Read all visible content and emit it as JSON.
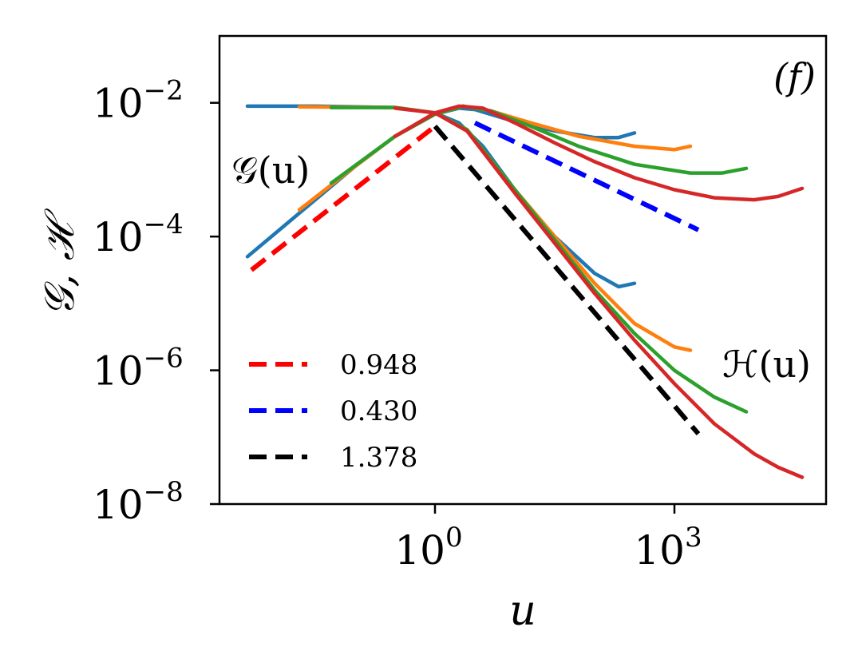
{
  "chart_data": {
    "type": "line",
    "panel_label": "(f)",
    "xlabel": "u",
    "ylabel": "𝒢, ℋ",
    "xscale": "log",
    "yscale": "log",
    "xlim_log10": [
      -2.7,
      4.9
    ],
    "ylim_log10": [
      -8.0,
      -1.0
    ],
    "x_ticks": [
      {
        "exp": 0,
        "base": "10",
        "sup": "0"
      },
      {
        "exp": 3,
        "base": "10",
        "sup": "3"
      }
    ],
    "y_ticks": [
      {
        "exp": -2,
        "base": "10",
        "sup": "−2"
      },
      {
        "exp": -4,
        "base": "10",
        "sup": "−4"
      },
      {
        "exp": -6,
        "base": "10",
        "sup": "−6"
      },
      {
        "exp": -8,
        "base": "10",
        "sup": "−8"
      }
    ],
    "annotations": [
      {
        "text": "𝒢(u)",
        "x_log10": -2.55,
        "y_log10": -3.2
      },
      {
        "text": "ℋ(u)",
        "x_log10": 3.6,
        "y_log10": -6.1
      }
    ],
    "legend_position": "lower-left",
    "legend": [
      {
        "label": "0.948",
        "color": "#ff0000"
      },
      {
        "label": "0.430",
        "color": "#0000ff"
      },
      {
        "label": "1.378",
        "color": "#000000"
      }
    ],
    "fit_lines": [
      {
        "name": "0.948",
        "color": "#ff0000",
        "points": [
          [
            -2.3,
            -4.5
          ],
          [
            0.0,
            -2.35
          ]
        ]
      },
      {
        "name": "0.430",
        "color": "#0000ff",
        "points": [
          [
            0.5,
            -2.3
          ],
          [
            3.3,
            -3.9
          ]
        ]
      },
      {
        "name": "1.378",
        "color": "#000000",
        "points": [
          [
            0.0,
            -2.35
          ],
          [
            3.3,
            -6.95
          ]
        ]
      }
    ],
    "series": [
      {
        "name": "G series 1",
        "color": "#1f77b4",
        "points": [
          [
            -2.35,
            -4.3
          ],
          [
            -2.0,
            -3.95
          ],
          [
            -1.5,
            -3.45
          ],
          [
            -1.0,
            -2.95
          ],
          [
            -0.5,
            -2.5
          ],
          [
            0.0,
            -2.17
          ],
          [
            0.3,
            -2.08
          ],
          [
            0.5,
            -2.1
          ],
          [
            1.0,
            -2.28
          ],
          [
            1.5,
            -2.42
          ],
          [
            2.0,
            -2.52
          ],
          [
            2.3,
            -2.52
          ],
          [
            2.5,
            -2.45
          ]
        ]
      },
      {
        "name": "H series 1",
        "color": "#1f77b4",
        "points": [
          [
            -2.35,
            -2.05
          ],
          [
            -1.5,
            -2.05
          ],
          [
            -0.5,
            -2.07
          ],
          [
            0.0,
            -2.15
          ],
          [
            0.3,
            -2.3
          ],
          [
            0.6,
            -2.65
          ],
          [
            1.0,
            -3.3
          ],
          [
            1.5,
            -4.0
          ],
          [
            2.0,
            -4.55
          ],
          [
            2.3,
            -4.75
          ],
          [
            2.5,
            -4.7
          ]
        ]
      },
      {
        "name": "G series 2",
        "color": "#ff7f0e",
        "points": [
          [
            -1.7,
            -3.6
          ],
          [
            -1.0,
            -2.95
          ],
          [
            -0.5,
            -2.5
          ],
          [
            0.0,
            -2.17
          ],
          [
            0.35,
            -2.05
          ],
          [
            0.7,
            -2.12
          ],
          [
            1.2,
            -2.3
          ],
          [
            1.8,
            -2.5
          ],
          [
            2.5,
            -2.65
          ],
          [
            3.0,
            -2.7
          ],
          [
            3.2,
            -2.65
          ]
        ]
      },
      {
        "name": "H series 2",
        "color": "#ff7f0e",
        "points": [
          [
            -1.7,
            -2.06
          ],
          [
            -0.5,
            -2.07
          ],
          [
            0.0,
            -2.15
          ],
          [
            0.4,
            -2.4
          ],
          [
            1.0,
            -3.3
          ],
          [
            1.5,
            -4.0
          ],
          [
            2.0,
            -4.7
          ],
          [
            2.5,
            -5.3
          ],
          [
            3.0,
            -5.65
          ],
          [
            3.2,
            -5.7
          ]
        ]
      },
      {
        "name": "G series 3",
        "color": "#2ca02c",
        "points": [
          [
            -1.3,
            -3.2
          ],
          [
            -0.5,
            -2.5
          ],
          [
            0.0,
            -2.17
          ],
          [
            0.35,
            -2.05
          ],
          [
            0.7,
            -2.12
          ],
          [
            1.2,
            -2.35
          ],
          [
            1.8,
            -2.65
          ],
          [
            2.5,
            -2.92
          ],
          [
            3.2,
            -3.05
          ],
          [
            3.6,
            -3.05
          ],
          [
            3.9,
            -2.98
          ]
        ]
      },
      {
        "name": "H series 3",
        "color": "#2ca02c",
        "points": [
          [
            -1.3,
            -2.07
          ],
          [
            -0.5,
            -2.07
          ],
          [
            0.0,
            -2.15
          ],
          [
            0.4,
            -2.4
          ],
          [
            1.0,
            -3.3
          ],
          [
            1.5,
            -4.05
          ],
          [
            2.0,
            -4.8
          ],
          [
            2.5,
            -5.45
          ],
          [
            3.0,
            -6.0
          ],
          [
            3.5,
            -6.4
          ],
          [
            3.9,
            -6.62
          ]
        ]
      },
      {
        "name": "G series 4",
        "color": "#d62728",
        "points": [
          [
            -0.5,
            -2.5
          ],
          [
            0.0,
            -2.15
          ],
          [
            0.3,
            -2.05
          ],
          [
            0.6,
            -2.08
          ],
          [
            1.0,
            -2.3
          ],
          [
            1.5,
            -2.6
          ],
          [
            2.0,
            -2.88
          ],
          [
            2.5,
            -3.12
          ],
          [
            3.0,
            -3.3
          ],
          [
            3.5,
            -3.42
          ],
          [
            4.0,
            -3.45
          ],
          [
            4.3,
            -3.4
          ],
          [
            4.6,
            -3.28
          ]
        ]
      },
      {
        "name": "H series 4",
        "color": "#d62728",
        "points": [
          [
            -0.5,
            -2.08
          ],
          [
            0.0,
            -2.15
          ],
          [
            0.4,
            -2.42
          ],
          [
            1.0,
            -3.35
          ],
          [
            1.5,
            -4.1
          ],
          [
            2.0,
            -4.85
          ],
          [
            2.5,
            -5.55
          ],
          [
            3.0,
            -6.2
          ],
          [
            3.5,
            -6.8
          ],
          [
            4.0,
            -7.25
          ],
          [
            4.3,
            -7.45
          ],
          [
            4.6,
            -7.6
          ]
        ]
      }
    ]
  }
}
